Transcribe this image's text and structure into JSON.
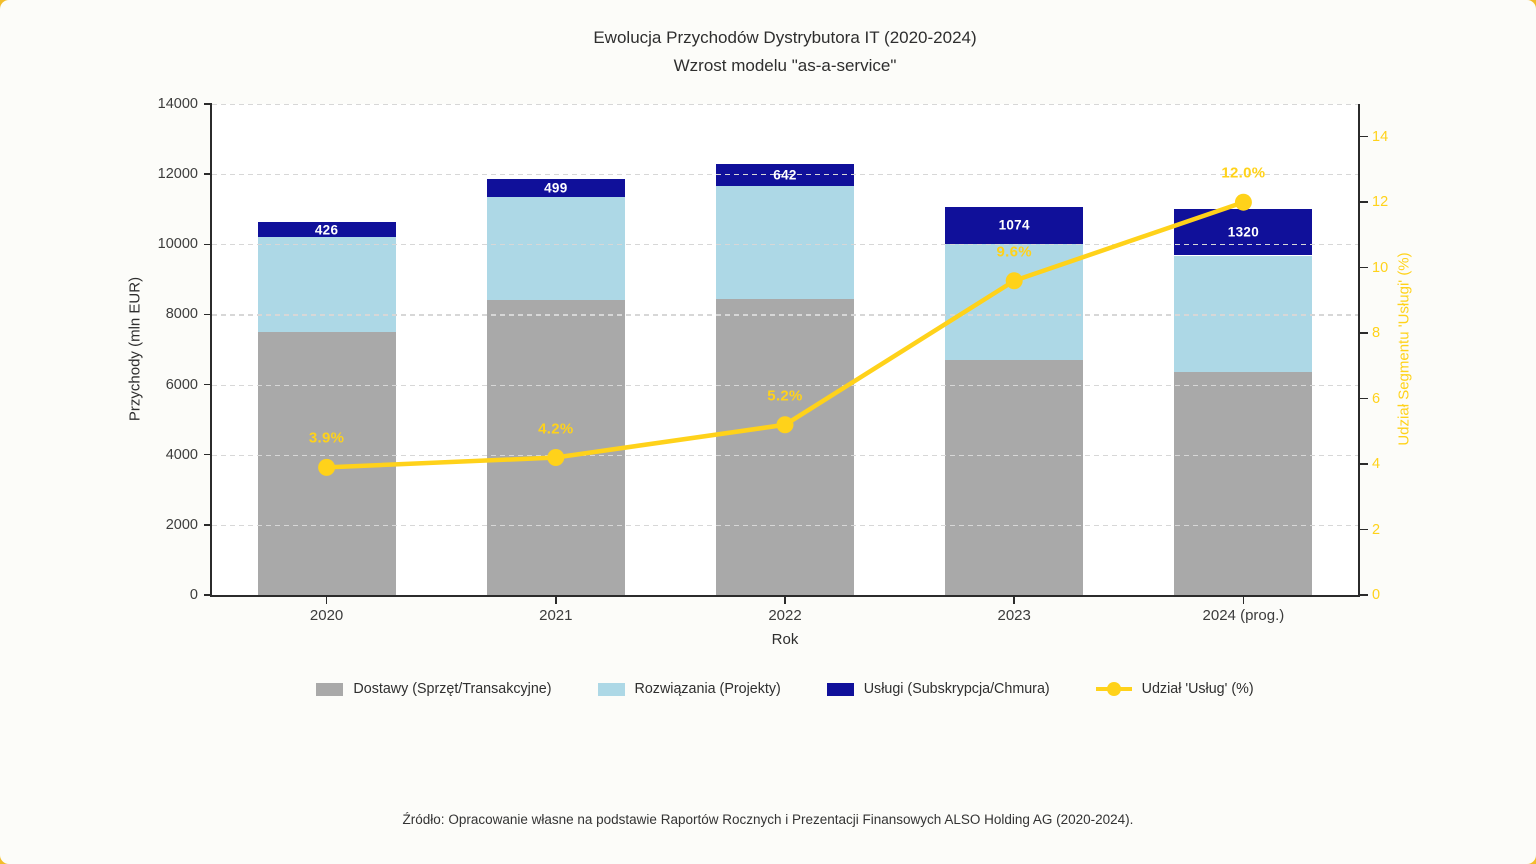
{
  "title": {
    "line1": "Ewolucja Przychodów Dystrybutora IT (2020-2024)",
    "line2": "Wzrost modelu \"as-a-service\""
  },
  "source": "Źródło: Opracowanie własne na podstawie Raportów Rocznych i Prezentacji Finansowych ALSO Holding AG (2020-2024).",
  "colors": {
    "page_behind": "#f2bd2b",
    "figure_bg": "#fcfcf9",
    "plot_bg": "#ffffff",
    "gray_bar": "#a9a9a9",
    "lightblue_bar": "#add8e6",
    "navy_bar": "#10109a",
    "gold": "#ffd21a",
    "grid": "#d7d7d7",
    "spine": "#2b2b2b",
    "tick_text": "#3c3c3c",
    "text": "#2e2e2e"
  },
  "chart_data": {
    "type": "bar",
    "subtype": "stacked-bars-with-line-dual-axis",
    "categories": [
      "2020",
      "2021",
      "2022",
      "2023",
      "2024 (prog.)"
    ],
    "xlabel": "Rok",
    "left_axis": {
      "label": "Przychody (mln EUR)",
      "min": 0,
      "max": 14000,
      "ticks": [
        0,
        2000,
        4000,
        6000,
        8000,
        10000,
        12000,
        14000
      ],
      "grid": "horizontal dashed"
    },
    "right_axis": {
      "label": "Udział Segmentu 'Usługi' (%)",
      "min": 0,
      "max": 15,
      "ticks": [
        0,
        2,
        4,
        6,
        8,
        10,
        12,
        14
      ]
    },
    "series": [
      {
        "name": "Dostawy (Sprzęt/Transakcyjne)",
        "type": "bar",
        "stack": "revenue",
        "color_key": "gray_bar",
        "values": [
          7500,
          8400,
          8450,
          6700,
          6350
        ]
      },
      {
        "name": "Rozwiązania (Projekty)",
        "type": "bar",
        "stack": "revenue",
        "color_key": "lightblue_bar",
        "values": [
          2700,
          2950,
          3200,
          3300,
          3330
        ]
      },
      {
        "name": "Usługi (Subskrypcja/Chmura)",
        "type": "bar",
        "stack": "revenue",
        "color_key": "navy_bar",
        "values": [
          426,
          499,
          642,
          1074,
          1320
        ],
        "data_labels": [
          "426",
          "499",
          "642",
          "1074",
          "1320"
        ]
      },
      {
        "name": "Udział 'Usług' (%)",
        "type": "line",
        "axis": "right",
        "color_key": "gold",
        "values": [
          3.9,
          4.2,
          5.2,
          9.6,
          12.0
        ],
        "data_labels": [
          "3.9%",
          "4.2%",
          "5.2%",
          "9.6%",
          "12.0%"
        ]
      }
    ],
    "legend_position": "bottom-center"
  },
  "legend": {
    "items": [
      {
        "label": "Dostawy (Sprzęt/Transakcyjne)",
        "marker": "rect",
        "color_key": "gray_bar"
      },
      {
        "label": "Rozwiązania (Projekty)",
        "marker": "rect",
        "color_key": "lightblue_bar"
      },
      {
        "label": "Usługi (Subskrypcja/Chmura)",
        "marker": "rect",
        "color_key": "navy_bar"
      },
      {
        "label": "Udział 'Usług' (%)",
        "marker": "line-dot",
        "color_key": "gold"
      }
    ]
  }
}
